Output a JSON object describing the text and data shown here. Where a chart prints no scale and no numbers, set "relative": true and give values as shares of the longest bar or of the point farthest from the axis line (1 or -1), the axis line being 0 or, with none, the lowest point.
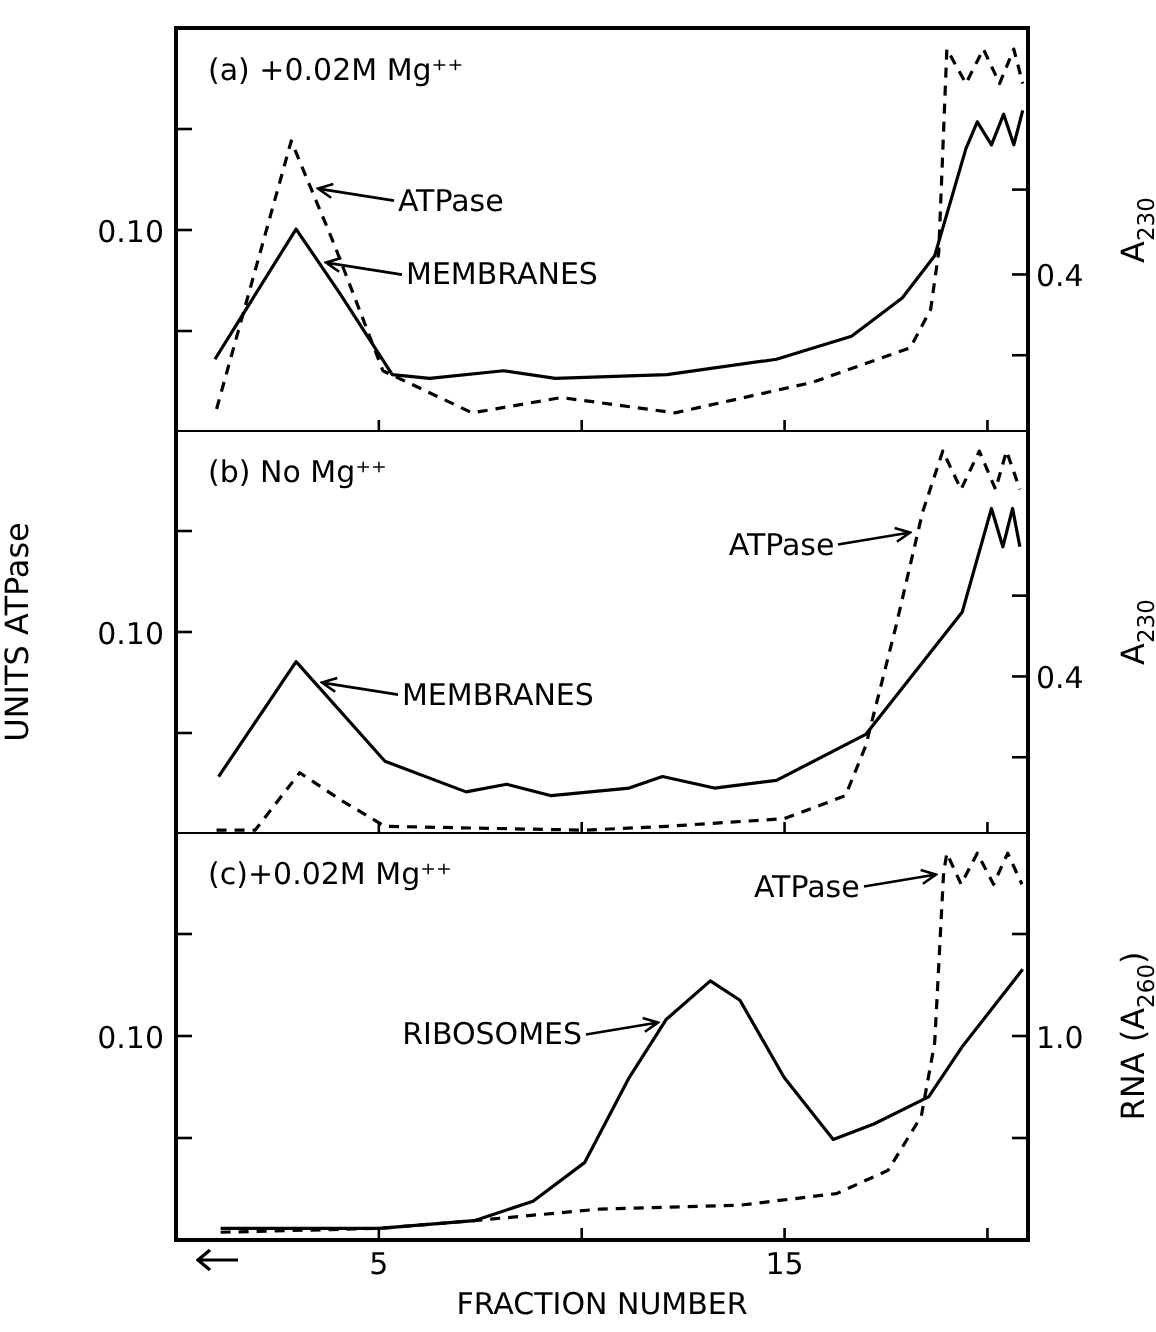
{
  "chart_data": [
    {
      "type": "line",
      "title": "(a) +0.02M Mg⁺⁺",
      "y2label": "A$_{230}$",
      "relative": true,
      "xlim": [
        0,
        21
      ],
      "series": [
        {
          "color": "#000000",
          "line_style": "dashed",
          "x": [
            1.0,
            2.84,
            3.9,
            5.1,
            7.3,
            9.5,
            12.3,
            15.7,
            18.1,
            18.6,
            18.8,
            19.0,
            19.47,
            19.9,
            20.3,
            20.65,
            20.87
          ],
          "values": [
            0.06,
            0.76,
            0.49,
            0.16,
            0.05,
            0.09,
            0.05,
            0.13,
            0.22,
            0.32,
            0.47,
            1,
            0.91,
            1,
            0.91,
            1,
            0.91
          ]
        },
        {
          "color": "#000000",
          "line_style": "solid",
          "x": [
            0.96,
            2.96,
            4.05,
            5.33,
            6.25,
            8.07,
            9.35,
            12.1,
            14.8,
            16.65,
            17.9,
            18.7,
            19.47,
            19.75,
            20.1,
            20.4,
            20.65,
            20.87
          ],
          "values": [
            0.19,
            0.53,
            0.36,
            0.15,
            0.14,
            0.16,
            0.14,
            0.15,
            0.19,
            0.25,
            0.35,
            0.46,
            0.74,
            0.81,
            0.75,
            0.83,
            0.75,
            0.84
          ]
        }
      ],
      "annotations": [
        "0.10",
        "0.4",
        {
          "text": "ATPase",
          "x": 3.3,
          "y": 0.64
        },
        {
          "text": "MEMBRANES",
          "x": 3.5,
          "y": 0.45
        }
      ]
    },
    {
      "type": "line",
      "title": "(b) No Mg⁺⁺",
      "ylabel": "UNITS ATPase",
      "y2label": "A$_{230}$",
      "relative": true,
      "xlim": [
        0,
        21
      ],
      "series": [
        {
          "color": "#000000",
          "line_style": "dashed",
          "x": [
            1.0,
            1.95,
            3.05,
            4.04,
            5.15,
            10.07,
            12.1,
            14.99,
            16.5,
            17.0,
            17.74,
            18.4,
            18.9,
            19.35,
            19.8,
            20.2,
            20.47,
            20.8
          ],
          "values": [
            0.01,
            0.01,
            0.16,
            0.09,
            0.02,
            0.01,
            0.02,
            0.04,
            0.1,
            0.23,
            0.54,
            0.84,
            1,
            0.9,
            1,
            0.9,
            1,
            0.9
          ]
        },
        {
          "color": "#000000",
          "line_style": "solid",
          "x": [
            1.05,
            2.96,
            5.15,
            7.15,
            8.15,
            9.25,
            11.17,
            11.99,
            13.27,
            14.8,
            17.0,
            19.38,
            20.1,
            20.38,
            20.62,
            20.8
          ],
          "values": [
            0.15,
            0.45,
            0.19,
            0.11,
            0.13,
            0.1,
            0.12,
            0.15,
            0.12,
            0.14,
            0.26,
            0.58,
            0.85,
            0.75,
            0.85,
            0.75
          ]
        }
      ],
      "annotations": [
        "0.10",
        "0.4",
        {
          "text": "MEMBRANES",
          "x": 3.4,
          "y": 0.4
        },
        {
          "text": "ATPase",
          "x": 18.3,
          "y": 0.79
        }
      ]
    },
    {
      "type": "line",
      "title": "(c)+0.02M Mg⁺⁺",
      "xlabel": "FRACTION NUMBER",
      "y2label": "RNA (A$_{260}$)",
      "relative": true,
      "xlim": [
        0,
        21
      ],
      "xticks": [
        5,
        {
          "value": 10,
          "label": null
        },
        15,
        {
          "value": 20,
          "label": null
        }
      ],
      "series": [
        {
          "color": "#000000",
          "line_style": "dashed",
          "x": [
            1.1,
            5.0,
            7.35,
            10.45,
            13.9,
            16.28,
            17.55,
            18.37,
            18.7,
            18.92,
            19.0,
            19.35,
            19.75,
            20.15,
            20.5,
            20.85
          ],
          "values": [
            0.02,
            0.03,
            0.05,
            0.08,
            0.09,
            0.12,
            0.18,
            0.32,
            0.51,
            0.95,
            1,
            0.92,
            1,
            0.92,
            1,
            0.92
          ]
        },
        {
          "color": "#000000",
          "line_style": "solid",
          "x": [
            1.1,
            5.0,
            7.35,
            8.8,
            10.07,
            11.17,
            12.08,
            13.17,
            13.9,
            14.99,
            16.2,
            17.2,
            18.55,
            19.38,
            20.87
          ],
          "values": [
            0.03,
            0.03,
            0.05,
            0.1,
            0.2,
            0.42,
            0.57,
            0.67,
            0.62,
            0.42,
            0.26,
            0.3,
            0.37,
            0.5,
            0.7
          ]
        }
      ],
      "annotations": [
        "0.10",
        "1.0",
        {
          "text": "RIBOSOMES",
          "x": 12.08,
          "y": 0.57
        },
        {
          "text": "ATPase",
          "x": 18.92,
          "y": 0.95
        }
      ]
    }
  ]
}
